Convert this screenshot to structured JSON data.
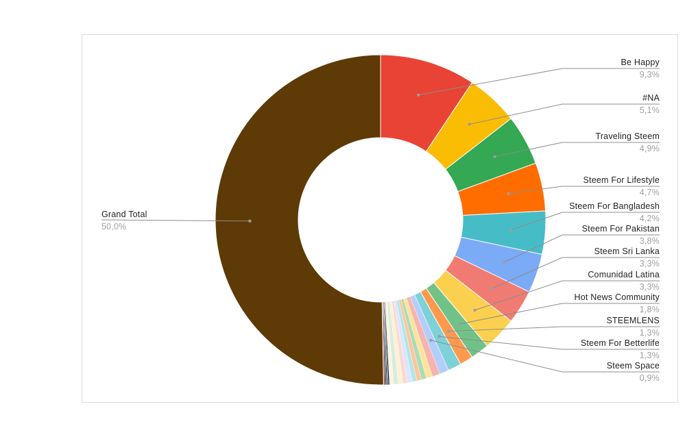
{
  "chart_data": {
    "type": "pie",
    "donut": true,
    "title": "",
    "legend": "none",
    "slices": [
      {
        "label": "Be Happy",
        "pct_text": "9,3%",
        "value": 9.3,
        "color": "#e94335",
        "labeled": true
      },
      {
        "label": "#NA",
        "pct_text": "5,1%",
        "value": 5.1,
        "color": "#fbbc04",
        "labeled": true
      },
      {
        "label": "Traveling Steem",
        "pct_text": "4,9%",
        "value": 4.9,
        "color": "#34a853",
        "labeled": true
      },
      {
        "label": "Steem For Lifestyle",
        "pct_text": "4,7%",
        "value": 4.7,
        "color": "#ff6d01",
        "labeled": true
      },
      {
        "label": "Steem For Bangladesh",
        "pct_text": "4,2%",
        "value": 4.2,
        "color": "#46bdc6",
        "labeled": true
      },
      {
        "label": "Steem For Pakistan",
        "pct_text": "3,8%",
        "value": 3.8,
        "color": "#7baaf7",
        "labeled": true
      },
      {
        "label": "Steem Sri Lanka",
        "pct_text": "3,3%",
        "value": 3.3,
        "color": "#f07b72",
        "labeled": true
      },
      {
        "label": "Comunidad Latina",
        "pct_text": "3,3%",
        "value": 3.3,
        "color": "#fcd04f",
        "labeled": true
      },
      {
        "label": "Hot News Community",
        "pct_text": "1,8%",
        "value": 1.8,
        "color": "#71c287",
        "labeled": true
      },
      {
        "label": "STEEMLENS",
        "pct_text": "1,3%",
        "value": 1.3,
        "color": "#ff994d",
        "labeled": true
      },
      {
        "label": "Steem For Betterlife",
        "pct_text": "1,3%",
        "value": 1.3,
        "color": "#7ed1d7",
        "labeled": true
      },
      {
        "label": "Steem Space",
        "pct_text": "0,9%",
        "value": 0.9,
        "color": "#b3cefb",
        "labeled": true
      },
      {
        "label": "",
        "pct_text": "",
        "value": 0.75,
        "color": "#f7b4ae",
        "labeled": false
      },
      {
        "label": "",
        "pct_text": "",
        "value": 0.6,
        "color": "#fde49b",
        "labeled": false
      },
      {
        "label": "",
        "pct_text": "",
        "value": 0.5,
        "color": "#aadcb7",
        "labeled": false
      },
      {
        "label": "",
        "pct_text": "",
        "value": 0.45,
        "color": "#ffc599",
        "labeled": false
      },
      {
        "label": "",
        "pct_text": "",
        "value": 0.45,
        "color": "#b5e5e8",
        "labeled": false
      },
      {
        "label": "",
        "pct_text": "",
        "value": 0.45,
        "color": "#d9e6fd",
        "labeled": false
      },
      {
        "label": "",
        "pct_text": "",
        "value": 0.45,
        "color": "#fbd9d6",
        "labeled": false
      },
      {
        "label": "",
        "pct_text": "",
        "value": 0.45,
        "color": "#fef1cd",
        "labeled": false
      },
      {
        "label": "",
        "pct_text": "",
        "value": 0.45,
        "color": "#d4ede0",
        "labeled": false
      },
      {
        "label": "",
        "pct_text": "",
        "value": 0.4,
        "color": "#fff1e3",
        "labeled": false
      },
      {
        "label": "",
        "pct_text": "",
        "value": 0.12,
        "color": "#1a1a1a",
        "labeled": false
      },
      {
        "label": "",
        "pct_text": "",
        "value": 0.08,
        "color": "#2e7d6b",
        "labeled": false
      },
      {
        "label": "",
        "pct_text": "",
        "value": 0.1,
        "color": "#222222",
        "labeled": false
      },
      {
        "label": "",
        "pct_text": "",
        "value": 0.07,
        "color": "#1f4e9a",
        "labeled": false
      },
      {
        "label": "",
        "pct_text": "",
        "value": 0.1,
        "color": "#111111",
        "labeled": false
      },
      {
        "label": "",
        "pct_text": "",
        "value": 0.1,
        "color": "#e53935",
        "labeled": false
      },
      {
        "label": "Grand Total",
        "pct_text": "50,0%",
        "value": 50.0,
        "color": "#5e3a06",
        "labeled": true
      }
    ]
  }
}
